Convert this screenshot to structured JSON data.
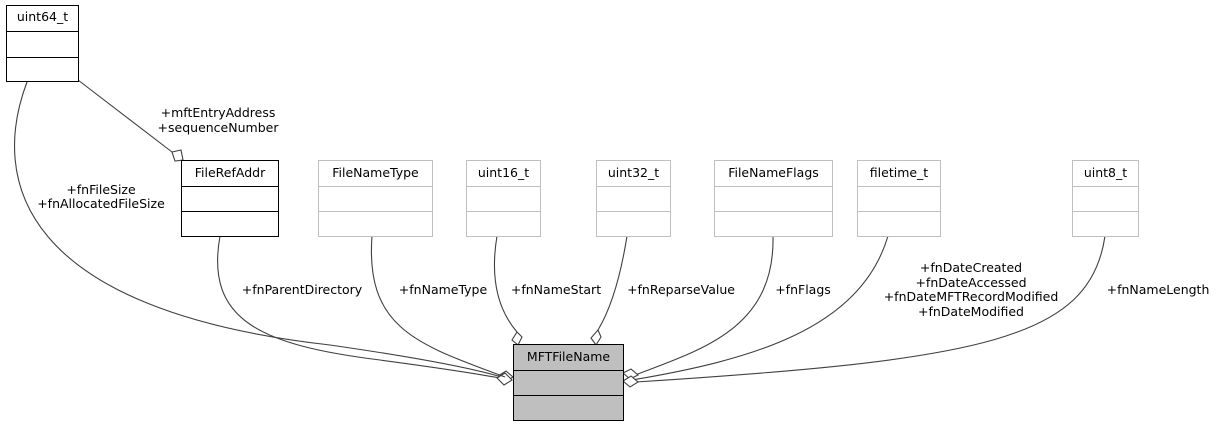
{
  "diagram": {
    "classes": {
      "uint64_t": "uint64_t",
      "fileRefAddr": "FileRefAddr",
      "fileNameType": "FileNameType",
      "uint16_t": "uint16_t",
      "uint32_t": "uint32_t",
      "fileNameFlags": "FileNameFlags",
      "filetime_t": "filetime_t",
      "uint8_t": "uint8_t",
      "mftFileName": "MFTFileName"
    },
    "edge_labels": {
      "uint64_to_fileref": [
        "+mftEntryAddress",
        "+sequenceNumber"
      ],
      "uint64_to_mft": [
        "+fnFileSize",
        "+fnAllocatedFileSize"
      ],
      "fileref_to_mft": [
        "+fnParentDirectory"
      ],
      "filenametype_to_mft": [
        "+fnNameType"
      ],
      "uint16_to_mft": [
        "+fnNameStart"
      ],
      "uint32_to_mft": [
        "+fnReparseValue"
      ],
      "filenameflags_to_mft": [
        "+fnFlags"
      ],
      "filetime_to_mft": [
        "+fnDateCreated",
        "+fnDateAccessed",
        "+fnDateMFTRecordModified",
        "+fnDateModified"
      ],
      "uint8_to_mft": [
        "+fnNameLength"
      ]
    }
  }
}
